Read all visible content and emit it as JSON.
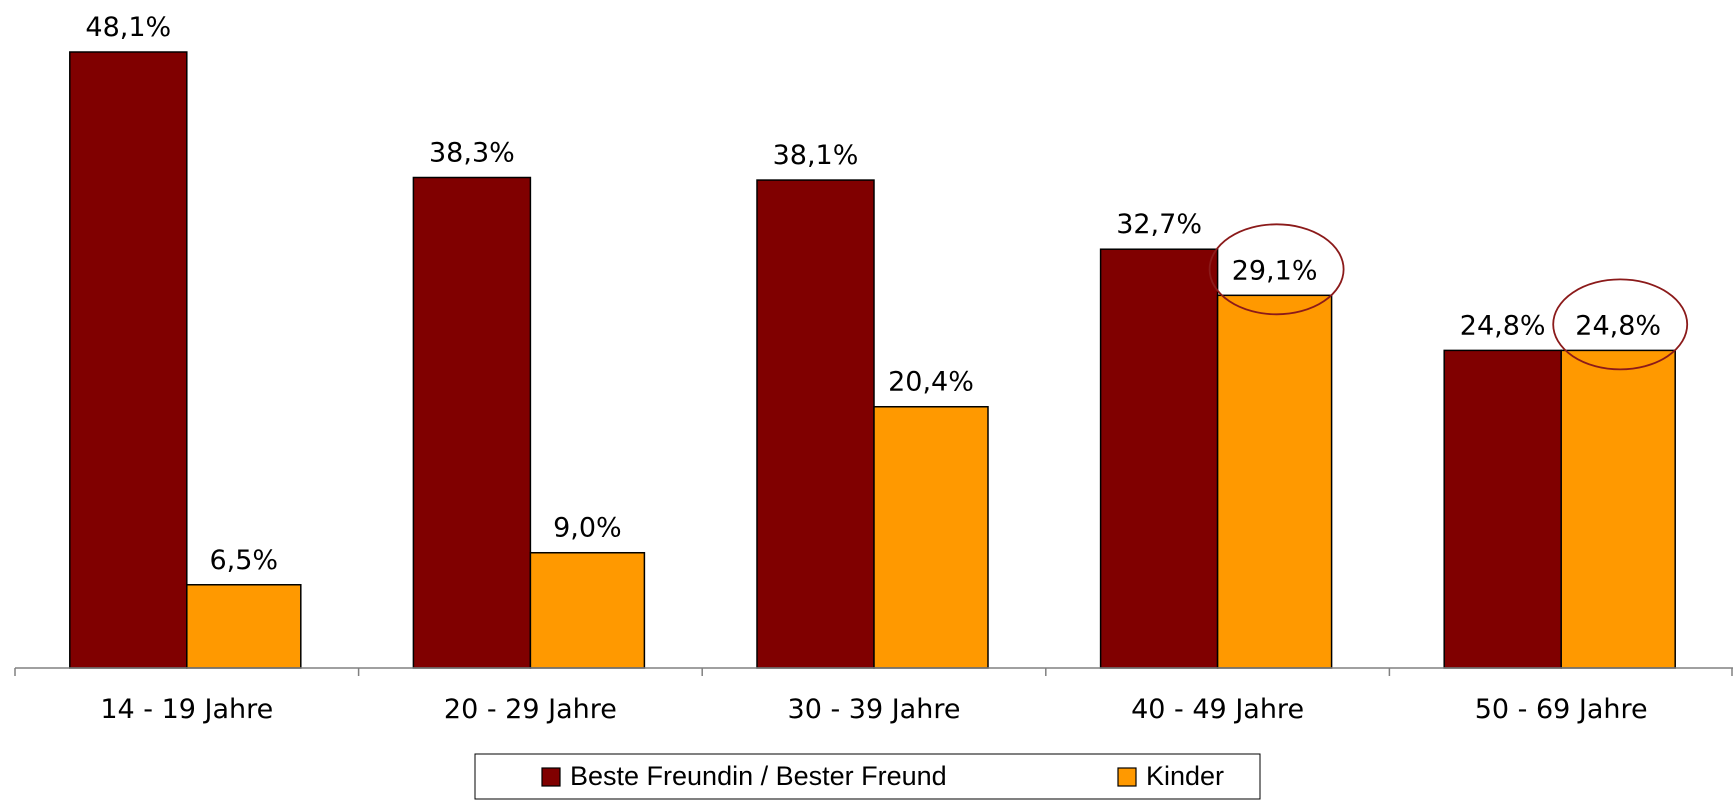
{
  "chart_data": {
    "type": "bar",
    "categories": [
      "14 - 19 Jahre",
      "20 - 29 Jahre",
      "30 - 39 Jahre",
      "40 - 49 Jahre",
      "50 - 69 Jahre"
    ],
    "series": [
      {
        "name": "Beste Freundin / Bester Freund",
        "color": "#800000",
        "values": [
          48.1,
          38.3,
          38.1,
          32.7,
          24.8
        ],
        "value_labels": [
          "48,1%",
          "38,3%",
          "38,1%",
          "32,7%",
          "24,8%"
        ]
      },
      {
        "name": "Kinder",
        "color": "#ff9900",
        "values": [
          6.5,
          9.0,
          20.4,
          29.1,
          24.8
        ],
        "value_labels": [
          "6,5%",
          "9,0%",
          "20,4%",
          "29,1%",
          "24,8%"
        ]
      }
    ],
    "legend": "bottom"
  }
}
